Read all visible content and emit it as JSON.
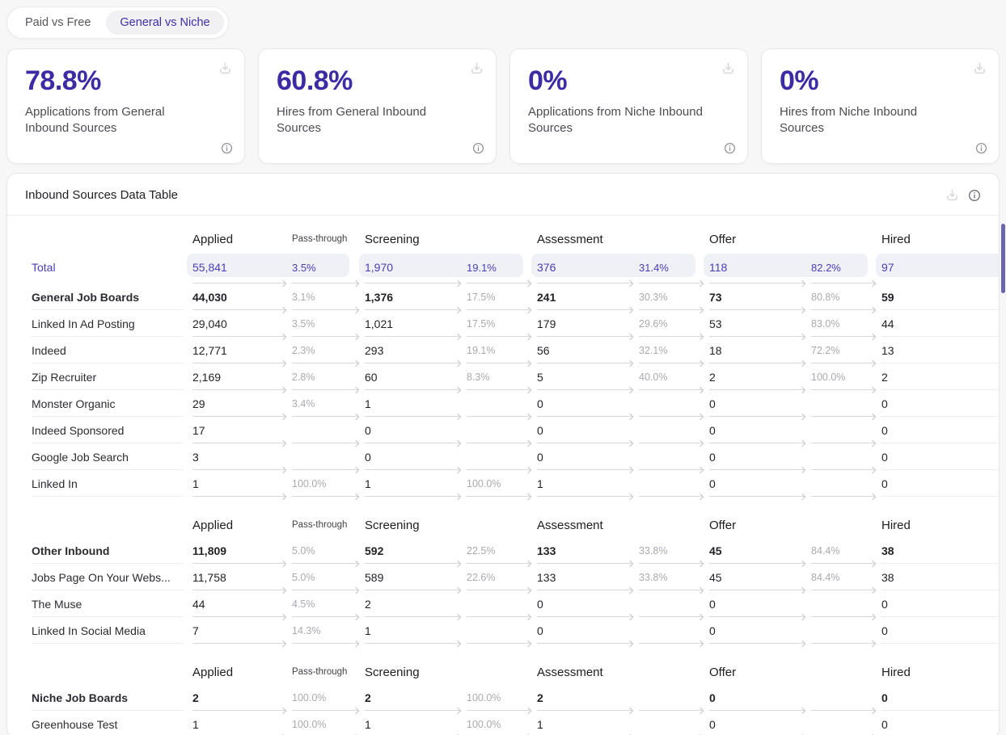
{
  "tabs": {
    "items": [
      {
        "label": "Paid vs Free",
        "selected": false
      },
      {
        "label": "General vs Niche",
        "selected": true
      }
    ]
  },
  "kpi_cards": [
    {
      "value": "78.8%",
      "label": "Applications from General Inbound Sources"
    },
    {
      "value": "60.8%",
      "label": "Hires from General Inbound Sources"
    },
    {
      "value": "0%",
      "label": "Applications from Niche Inbound Sources"
    },
    {
      "value": "0%",
      "label": "Hires from Niche Inbound Sources"
    }
  ],
  "table": {
    "title": "Inbound Sources Data Table",
    "column_headers": {
      "applied": "Applied",
      "pass_through": "Pass-through",
      "screening": "Screening",
      "assessment": "Assessment",
      "offer": "Offer",
      "hired": "Hired"
    },
    "total_row": {
      "label": "Total",
      "cells": [
        "55,841",
        "3.5%",
        "1,970",
        "19.1%",
        "376",
        "31.4%",
        "118",
        "82.2%",
        "97"
      ]
    },
    "groups": [
      {
        "rows": [
          {
            "label": "General Job Boards",
            "bold": true,
            "cells": [
              "44,030",
              "3.1%",
              "1,376",
              "17.5%",
              "241",
              "30.3%",
              "73",
              "80.8%",
              "59"
            ]
          },
          {
            "label": "Linked In Ad Posting",
            "bold": false,
            "cells": [
              "29,040",
              "3.5%",
              "1,021",
              "17.5%",
              "179",
              "29.6%",
              "53",
              "83.0%",
              "44"
            ]
          },
          {
            "label": "Indeed",
            "bold": false,
            "cells": [
              "12,771",
              "2.3%",
              "293",
              "19.1%",
              "56",
              "32.1%",
              "18",
              "72.2%",
              "13"
            ]
          },
          {
            "label": "Zip Recruiter",
            "bold": false,
            "cells": [
              "2,169",
              "2.8%",
              "60",
              "8.3%",
              "5",
              "40.0%",
              "2",
              "100.0%",
              "2"
            ]
          },
          {
            "label": "Monster Organic",
            "bold": false,
            "cells": [
              "29",
              "3.4%",
              "1",
              "",
              "0",
              "",
              "0",
              "",
              "0"
            ]
          },
          {
            "label": "Indeed Sponsored",
            "bold": false,
            "cells": [
              "17",
              "",
              "0",
              "",
              "0",
              "",
              "0",
              "",
              "0"
            ]
          },
          {
            "label": "Google Job Search",
            "bold": false,
            "cells": [
              "3",
              "",
              "0",
              "",
              "0",
              "",
              "0",
              "",
              "0"
            ]
          },
          {
            "label": "Linked In",
            "bold": false,
            "cells": [
              "1",
              "100.0%",
              "1",
              "100.0%",
              "1",
              "",
              "0",
              "",
              "0"
            ]
          }
        ]
      },
      {
        "rows": [
          {
            "label": "Other Inbound",
            "bold": true,
            "cells": [
              "11,809",
              "5.0%",
              "592",
              "22.5%",
              "133",
              "33.8%",
              "45",
              "84.4%",
              "38"
            ]
          },
          {
            "label": "Jobs Page On Your Webs...",
            "bold": false,
            "cells": [
              "11,758",
              "5.0%",
              "589",
              "22.6%",
              "133",
              "33.8%",
              "45",
              "84.4%",
              "38"
            ]
          },
          {
            "label": "The Muse",
            "bold": false,
            "cells": [
              "44",
              "4.5%",
              "2",
              "",
              "0",
              "",
              "0",
              "",
              "0"
            ]
          },
          {
            "label": "Linked In Social Media",
            "bold": false,
            "cells": [
              "7",
              "14.3%",
              "1",
              "",
              "0",
              "",
              "0",
              "",
              "0"
            ]
          }
        ]
      },
      {
        "rows": [
          {
            "label": "Niche Job Boards",
            "bold": true,
            "cells": [
              "2",
              "100.0%",
              "2",
              "100.0%",
              "2",
              "",
              "0",
              "",
              "0"
            ]
          },
          {
            "label": "Greenhouse Test",
            "bold": false,
            "cells": [
              "1",
              "100.0%",
              "1",
              "100.0%",
              "1",
              "",
              "0",
              "",
              "0"
            ]
          }
        ]
      }
    ]
  },
  "colors": {
    "accent_indigo": "#3b2ca6",
    "total_purple": "#4a3eb3",
    "pill_background": "#f0f0f7",
    "pct_gray": "#a9a9b0",
    "arrow_gray": "#d7d7dc",
    "page_background": "#f7f7f8"
  }
}
